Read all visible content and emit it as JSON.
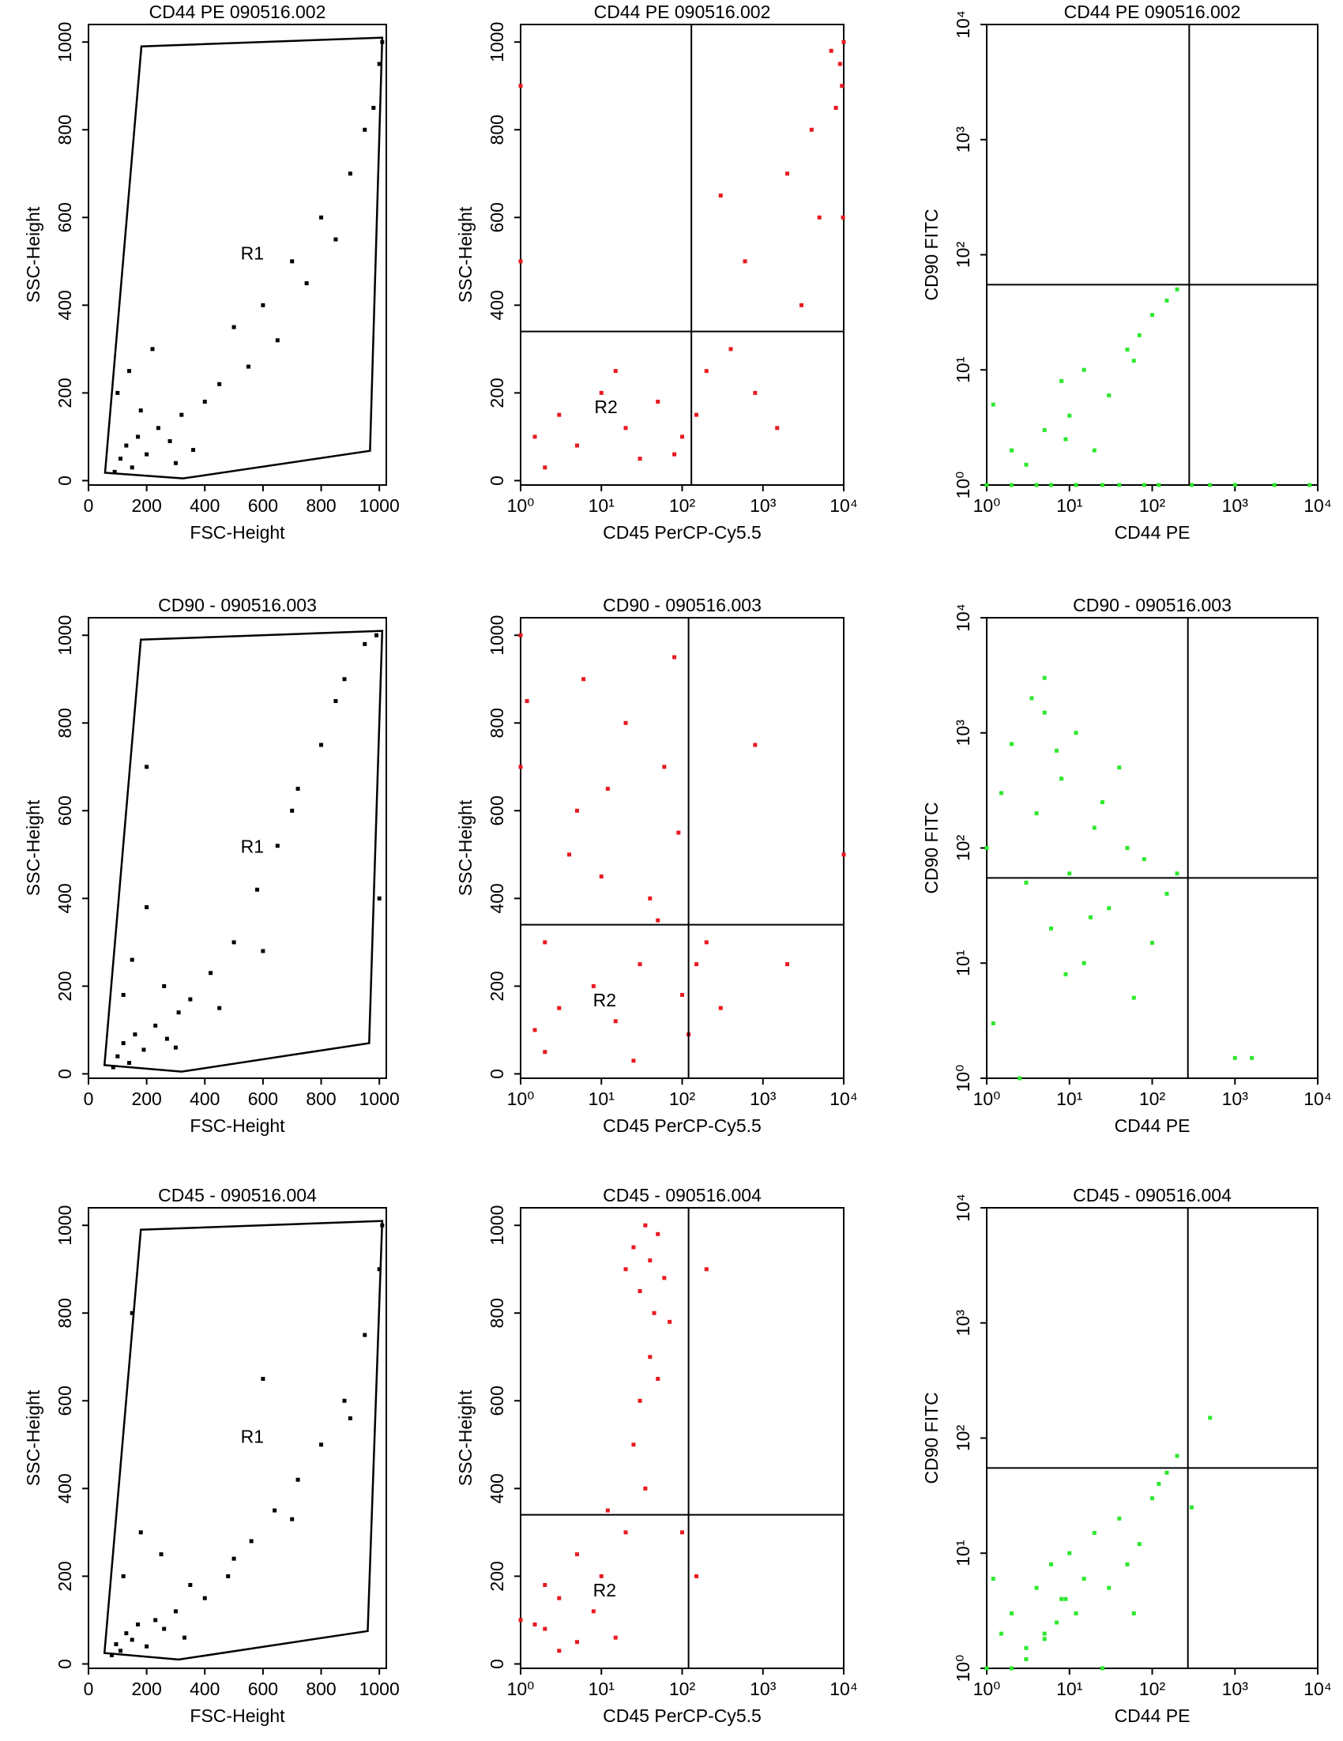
{
  "chart_data": [
    {
      "type": "scatter",
      "title": "CD44 PE 090516.002",
      "x_label": "FSC-Height",
      "y_label": "SSC-Height",
      "color": "#000000",
      "xlim": [
        0,
        1024
      ],
      "ylim": [
        -10,
        1040
      ],
      "xticks": [
        0,
        200,
        400,
        600,
        800,
        1000
      ],
      "yticks": [
        0,
        200,
        400,
        600,
        800,
        1000
      ],
      "log_x": false,
      "log_y": false,
      "x": [
        90,
        110,
        130,
        150,
        170,
        200,
        240,
        280,
        320,
        360,
        100,
        140,
        180,
        220,
        400,
        450,
        500,
        600,
        700,
        800,
        900,
        980,
        1000,
        300,
        550,
        650,
        750,
        850,
        950,
        1010
      ],
      "y": [
        20,
        50,
        80,
        30,
        100,
        60,
        120,
        90,
        150,
        70,
        200,
        250,
        160,
        300,
        180,
        220,
        350,
        400,
        500,
        600,
        700,
        850,
        950,
        40,
        260,
        320,
        450,
        550,
        800,
        1000
      ],
      "gate": {
        "label": "R1",
        "x": [
          182,
          1010,
          968,
          325,
          57
        ],
        "y": [
          990,
          1010,
          68,
          5,
          18
        ]
      }
    },
    {
      "type": "scatter",
      "title": "CD44 PE 090516.002",
      "x_label": "CD45 PerCP-Cy5.5",
      "y_label": "SSC-Height",
      "color": "#e8191f",
      "xlim": [
        1,
        10000
      ],
      "ylim": [
        -10,
        1040
      ],
      "log_x": true,
      "log_y": false,
      "xticks": [
        {
          "value": 1,
          "label": "10⁰"
        },
        {
          "value": 10,
          "label": "10¹"
        },
        {
          "value": 100,
          "label": "10²"
        },
        {
          "value": 1000,
          "label": "10³"
        },
        {
          "value": 10000,
          "label": "10⁴"
        }
      ],
      "yticks": [
        0,
        200,
        400,
        600,
        800,
        1000
      ],
      "x": [
        1,
        1,
        1.5,
        3,
        5,
        10,
        20,
        50,
        80,
        150,
        200,
        400,
        800,
        1500,
        3000,
        5000,
        8000,
        9000,
        9500,
        10000,
        2000,
        600,
        300,
        4000,
        7000,
        30,
        100,
        9800,
        15,
        2
      ],
      "y": [
        500,
        900,
        100,
        150,
        80,
        200,
        120,
        180,
        60,
        150,
        250,
        300,
        200,
        120,
        400,
        600,
        850,
        950,
        900,
        1000,
        700,
        500,
        650,
        800,
        980,
        50,
        100,
        600,
        250,
        30
      ],
      "quadrant": {
        "x": 130,
        "y": 340
      },
      "gate": {
        "label": "R2"
      }
    },
    {
      "type": "scatter",
      "title": "CD44 PE 090516.002",
      "x_label": "CD44 PE",
      "y_label": "CD90 FITC",
      "color": "#2ee82e",
      "xlim": [
        1,
        10000
      ],
      "ylim": [
        1,
        10000
      ],
      "log_x": true,
      "log_y": true,
      "xticks": [
        {
          "value": 1,
          "label": "10⁰"
        },
        {
          "value": 10,
          "label": "10¹"
        },
        {
          "value": 100,
          "label": "10²"
        },
        {
          "value": 1000,
          "label": "10³"
        },
        {
          "value": 10000,
          "label": "10⁴"
        }
      ],
      "yticks": [
        {
          "value": 1,
          "label": "10⁰"
        },
        {
          "value": 10,
          "label": "10¹"
        },
        {
          "value": 100,
          "label": "10²"
        },
        {
          "value": 1000,
          "label": "10³"
        },
        {
          "value": 10000,
          "label": "10⁴"
        }
      ],
      "x": [
        1,
        1.2,
        2,
        3,
        5,
        8,
        10,
        15,
        20,
        30,
        50,
        70,
        100,
        150,
        200,
        2,
        4,
        6,
        12,
        25,
        40,
        80,
        120,
        300,
        500,
        1000,
        3000,
        8000,
        60,
        9
      ],
      "y": [
        1,
        5,
        2,
        1.5,
        3,
        8,
        4,
        10,
        2,
        6,
        15,
        20,
        30,
        40,
        50,
        1,
        1,
        1,
        1,
        1,
        1,
        1,
        1,
        1,
        1,
        1,
        1,
        1,
        12,
        2.5
      ],
      "quadrant": {
        "x": 280,
        "y": 55
      }
    },
    {
      "type": "scatter",
      "title": "CD90 - 090516.003",
      "x_label": "FSC-Height",
      "y_label": "SSC-Height",
      "color": "#000000",
      "xlim": [
        0,
        1024
      ],
      "ylim": [
        -10,
        1040
      ],
      "xticks": [
        0,
        200,
        400,
        600,
        800,
        1000
      ],
      "yticks": [
        0,
        200,
        400,
        600,
        800,
        1000
      ],
      "log_x": false,
      "log_y": false,
      "x": [
        85,
        100,
        120,
        140,
        160,
        190,
        230,
        270,
        310,
        120,
        150,
        200,
        260,
        350,
        420,
        500,
        580,
        650,
        720,
        800,
        880,
        950,
        990,
        1000,
        300,
        450,
        600,
        700,
        850,
        200
      ],
      "y": [
        15,
        40,
        70,
        25,
        90,
        55,
        110,
        80,
        140,
        180,
        260,
        380,
        200,
        170,
        230,
        300,
        420,
        520,
        650,
        750,
        900,
        980,
        1000,
        400,
        60,
        150,
        280,
        600,
        850,
        700
      ],
      "gate": {
        "label": "R1",
        "x": [
          180,
          1010,
          965,
          320,
          55
        ],
        "y": [
          990,
          1010,
          70,
          5,
          20
        ]
      }
    },
    {
      "type": "scatter",
      "title": "CD90 - 090516.003",
      "x_label": "CD45 PerCP-Cy5.5",
      "y_label": "SSC-Height",
      "color": "#e8191f",
      "xlim": [
        1,
        10000
      ],
      "ylim": [
        -10,
        1040
      ],
      "log_x": true,
      "log_y": false,
      "xticks": [
        {
          "value": 1,
          "label": "10⁰"
        },
        {
          "value": 10,
          "label": "10¹"
        },
        {
          "value": 100,
          "label": "10²"
        },
        {
          "value": 1000,
          "label": "10³"
        },
        {
          "value": 10000,
          "label": "10⁴"
        }
      ],
      "yticks": [
        0,
        200,
        400,
        600,
        800,
        1000
      ],
      "x": [
        1,
        1,
        1.5,
        2,
        3,
        5,
        8,
        10,
        15,
        20,
        30,
        50,
        80,
        100,
        120,
        2,
        4,
        6,
        12,
        25,
        40,
        60,
        90,
        150,
        200,
        300,
        800,
        2000,
        10000,
        1.2
      ],
      "y": [
        1000,
        700,
        100,
        300,
        150,
        600,
        200,
        450,
        120,
        800,
        250,
        350,
        950,
        180,
        90,
        50,
        500,
        900,
        650,
        30,
        400,
        700,
        550,
        250,
        300,
        150,
        750,
        250,
        500,
        850
      ],
      "quadrant": {
        "x": 120,
        "y": 340
      },
      "gate": {
        "label": "R2"
      }
    },
    {
      "type": "scatter",
      "title": "CD90 - 090516.003",
      "x_label": "CD44 PE",
      "y_label": "CD90 FITC",
      "color": "#2ee82e",
      "xlim": [
        1,
        10000
      ],
      "ylim": [
        1,
        10000
      ],
      "log_x": true,
      "log_y": true,
      "xticks": [
        {
          "value": 1,
          "label": "10⁰"
        },
        {
          "value": 10,
          "label": "10¹"
        },
        {
          "value": 100,
          "label": "10²"
        },
        {
          "value": 1000,
          "label": "10³"
        },
        {
          "value": 10000,
          "label": "10⁴"
        }
      ],
      "yticks": [
        {
          "value": 1,
          "label": "10⁰"
        },
        {
          "value": 10,
          "label": "10¹"
        },
        {
          "value": 100,
          "label": "10²"
        },
        {
          "value": 1000,
          "label": "10³"
        },
        {
          "value": 10000,
          "label": "10⁴"
        }
      ],
      "x": [
        1,
        1.5,
        2,
        3,
        4,
        5,
        6,
        8,
        10,
        12,
        15,
        20,
        30,
        40,
        60,
        80,
        100,
        150,
        200,
        1.2,
        2.5,
        3.5,
        7,
        9,
        18,
        25,
        50,
        1000,
        1600,
        5
      ],
      "y": [
        100,
        300,
        800,
        50,
        200,
        1500,
        20,
        400,
        60,
        1000,
        10,
        150,
        30,
        500,
        5,
        80,
        15,
        40,
        60,
        3,
        1,
        2000,
        700,
        8,
        25,
        250,
        100,
        1.5,
        1.5,
        3000
      ],
      "quadrant": {
        "x": 270,
        "y": 55
      }
    },
    {
      "type": "scatter",
      "title": "CD45 - 090516.004",
      "x_label": "FSC-Height",
      "y_label": "SSC-Height",
      "color": "#000000",
      "xlim": [
        0,
        1024
      ],
      "ylim": [
        -10,
        1040
      ],
      "xticks": [
        0,
        200,
        400,
        600,
        800,
        1000
      ],
      "yticks": [
        0,
        200,
        400,
        600,
        800,
        1000
      ],
      "log_x": false,
      "log_y": false,
      "x": [
        80,
        95,
        110,
        130,
        150,
        170,
        200,
        230,
        260,
        300,
        330,
        120,
        180,
        250,
        400,
        480,
        560,
        640,
        720,
        800,
        880,
        950,
        1000,
        1010,
        350,
        500,
        700,
        900,
        150,
        600
      ],
      "y": [
        20,
        45,
        30,
        70,
        55,
        90,
        40,
        100,
        80,
        120,
        60,
        200,
        300,
        250,
        150,
        200,
        280,
        350,
        420,
        500,
        600,
        750,
        900,
        1000,
        180,
        240,
        330,
        560,
        800,
        650
      ],
      "gate": {
        "label": "R1",
        "x": [
          180,
          1010,
          960,
          310,
          55
        ],
        "y": [
          990,
          1010,
          75,
          10,
          25
        ]
      }
    },
    {
      "type": "scatter",
      "title": "CD45 - 090516.004",
      "x_label": "CD45 PerCP-Cy5.5",
      "y_label": "SSC-Height",
      "color": "#e8191f",
      "xlim": [
        1,
        10000
      ],
      "ylim": [
        -10,
        1040
      ],
      "log_x": true,
      "log_y": false,
      "xticks": [
        {
          "value": 1,
          "label": "10⁰"
        },
        {
          "value": 10,
          "label": "10¹"
        },
        {
          "value": 100,
          "label": "10²"
        },
        {
          "value": 1000,
          "label": "10³"
        },
        {
          "value": 10000,
          "label": "10⁴"
        }
      ],
      "yticks": [
        0,
        200,
        400,
        600,
        800,
        1000
      ],
      "x": [
        20,
        25,
        30,
        35,
        40,
        45,
        50,
        60,
        30,
        40,
        1,
        2,
        3,
        5,
        8,
        10,
        15,
        20,
        5,
        3,
        2,
        1.5,
        25,
        35,
        50,
        100,
        150,
        200,
        70,
        12
      ],
      "y": [
        900,
        950,
        850,
        1000,
        920,
        800,
        980,
        880,
        600,
        700,
        100,
        80,
        150,
        50,
        120,
        200,
        60,
        300,
        250,
        30,
        180,
        90,
        500,
        400,
        650,
        300,
        200,
        900,
        780,
        350
      ],
      "quadrant": {
        "x": 120,
        "y": 340
      },
      "gate": {
        "label": "R2"
      }
    },
    {
      "type": "scatter",
      "title": "CD45 - 090516.004",
      "x_label": "CD44 PE",
      "y_label": "CD90 FITC",
      "color": "#2ee82e",
      "xlim": [
        1,
        10000
      ],
      "ylim": [
        1,
        10000
      ],
      "log_x": true,
      "log_y": true,
      "xticks": [
        {
          "value": 1,
          "label": "10⁰"
        },
        {
          "value": 10,
          "label": "10¹"
        },
        {
          "value": 100,
          "label": "10²"
        },
        {
          "value": 1000,
          "label": "10³"
        },
        {
          "value": 10000,
          "label": "10⁴"
        }
      ],
      "yticks": [
        {
          "value": 1,
          "label": "10⁰"
        },
        {
          "value": 10,
          "label": "10¹"
        },
        {
          "value": 100,
          "label": "10²"
        },
        {
          "value": 1000,
          "label": "10³"
        },
        {
          "value": 10000,
          "label": "10⁴"
        }
      ],
      "x": [
        1,
        1.5,
        2,
        3,
        4,
        5,
        6,
        8,
        10,
        12,
        15,
        20,
        30,
        40,
        50,
        70,
        100,
        150,
        200,
        500,
        2,
        3,
        5,
        7,
        9,
        1.2,
        25,
        60,
        120,
        300
      ],
      "y": [
        1,
        2,
        3,
        1.5,
        5,
        2,
        8,
        4,
        10,
        3,
        6,
        15,
        5,
        20,
        8,
        12,
        30,
        50,
        70,
        150,
        1,
        1.2,
        1.8,
        2.5,
        4,
        6,
        1,
        3,
        40,
        25
      ],
      "quadrant": {
        "x": 270,
        "y": 55
      }
    }
  ]
}
